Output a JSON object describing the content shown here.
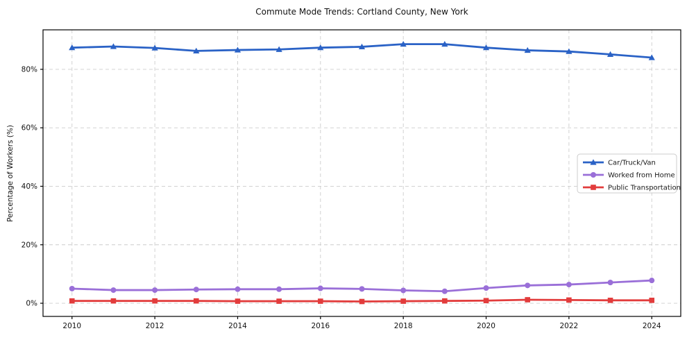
{
  "chart_data": {
    "type": "line",
    "title": "Commute Mode Trends: Cortland County, New York",
    "xlabel": "",
    "ylabel": "Percentage of Workers (%)",
    "x": [
      2010,
      2011,
      2012,
      2013,
      2014,
      2015,
      2016,
      2017,
      2018,
      2019,
      2020,
      2021,
      2022,
      2023,
      2024
    ],
    "xticks": [
      2010,
      2012,
      2014,
      2016,
      2018,
      2020,
      2022,
      2024
    ],
    "xtick_labels": [
      "2010",
      "2012",
      "2014",
      "2016",
      "2018",
      "2020",
      "2022",
      "2024"
    ],
    "yticks": [
      0,
      20,
      40,
      60,
      80
    ],
    "ytick_labels": [
      "0%",
      "20%",
      "40%",
      "60%",
      "80%"
    ],
    "xlim": [
      2009.3,
      2024.7
    ],
    "ylim": [
      -4.5,
      93.5
    ],
    "grid": true,
    "grid_style": "dashed",
    "grid_color": "#cccccc",
    "axes_color": "#000000",
    "legend_position": "center-right",
    "series": [
      {
        "name": "Car/Truck/Van",
        "color": "#2a62c6",
        "marker": "triangle",
        "values": [
          87.4,
          87.8,
          87.3,
          86.3,
          86.6,
          86.8,
          87.4,
          87.7,
          88.6,
          88.6,
          87.4,
          86.5,
          86.1,
          85.1,
          84.0
        ]
      },
      {
        "name": "Worked from Home",
        "color": "#9a6fd8",
        "marker": "circle",
        "values": [
          5.0,
          4.5,
          4.5,
          4.7,
          4.8,
          4.8,
          5.1,
          4.9,
          4.4,
          4.1,
          5.2,
          6.1,
          6.4,
          7.1,
          7.8
        ]
      },
      {
        "name": "Public Transportation",
        "color": "#e23c3c",
        "marker": "square",
        "values": [
          0.8,
          0.8,
          0.8,
          0.8,
          0.7,
          0.7,
          0.7,
          0.6,
          0.7,
          0.8,
          0.9,
          1.2,
          1.1,
          1.0,
          1.0
        ]
      }
    ]
  }
}
